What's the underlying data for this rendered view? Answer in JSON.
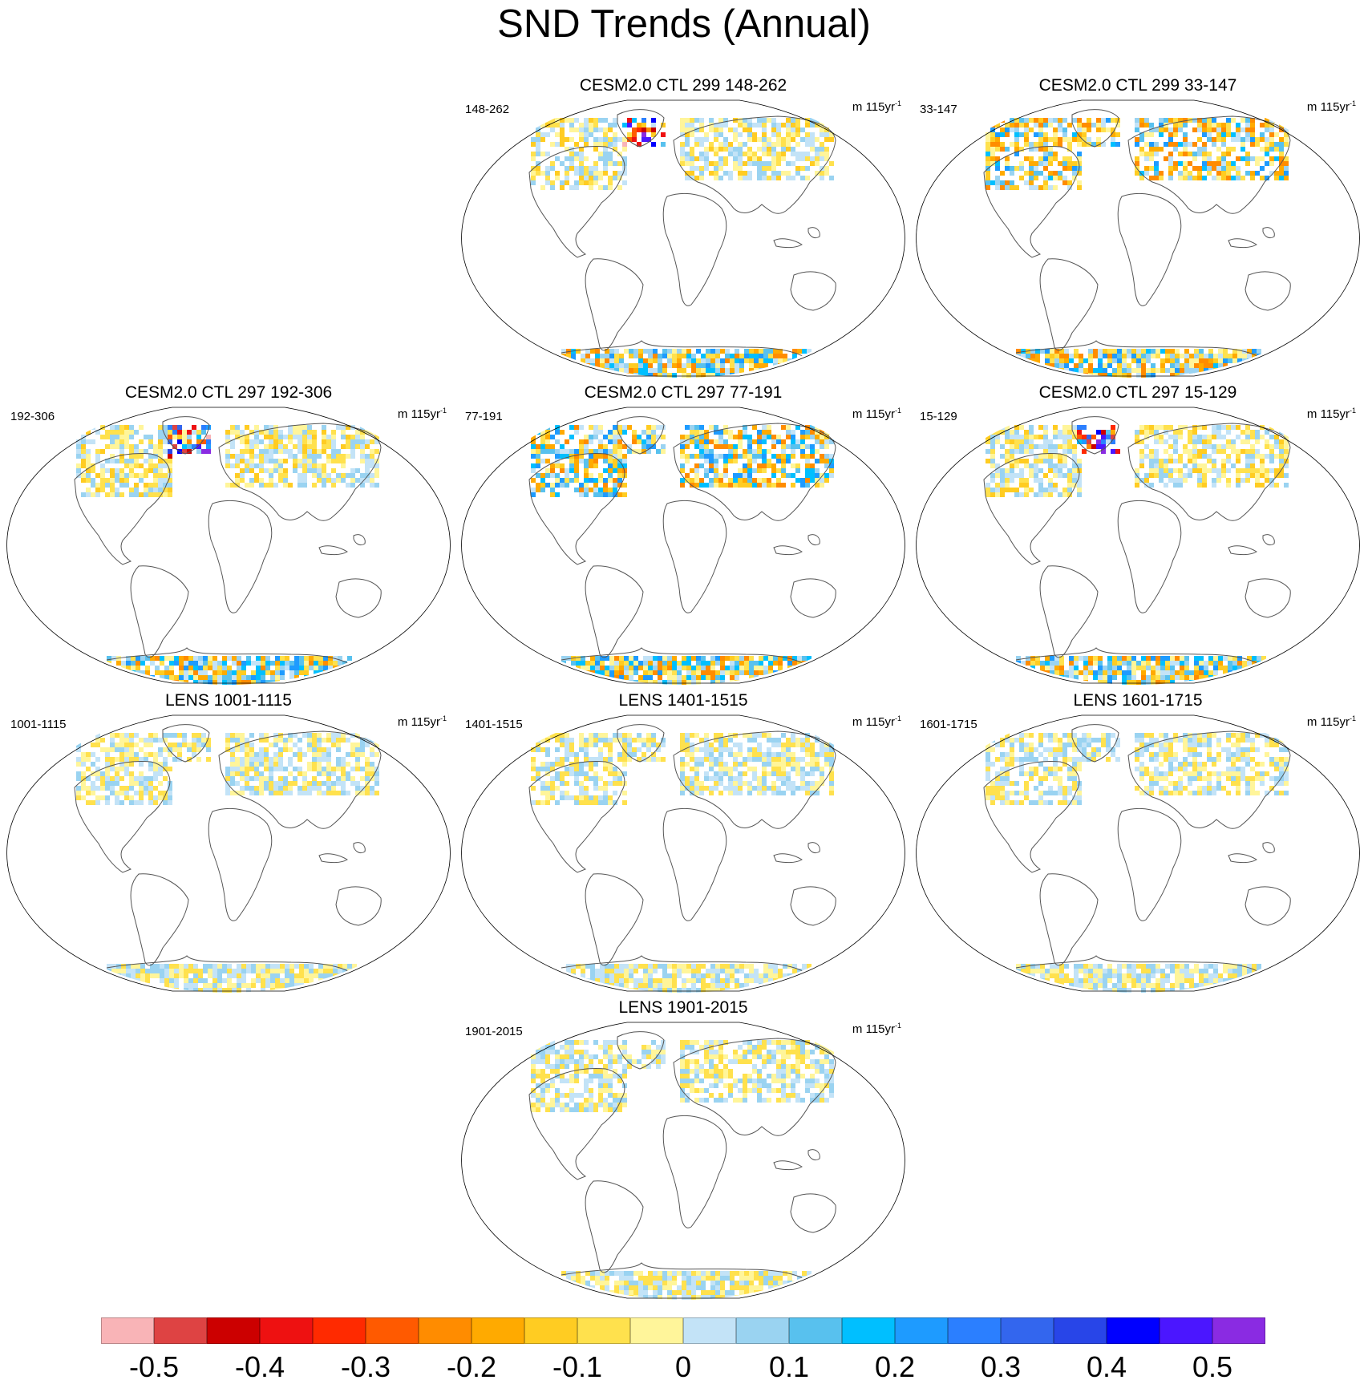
{
  "title": "SND Trends (Annual)",
  "units": "m 115yr",
  "units_exponent": "-1",
  "panels": [
    {
      "title": "CESM2.0 CTL 299 148-262",
      "left_label": "148-262",
      "pattern": "strong",
      "seed": 3
    },
    {
      "title": "CESM2.0 CTL 299 33-147",
      "left_label": "33-147",
      "pattern": "warm",
      "seed": 7
    },
    {
      "title": "CESM2.0 CTL 297 192-306",
      "left_label": "192-306",
      "pattern": "strong",
      "seed": 11
    },
    {
      "title": "CESM2.0 CTL 297 77-191",
      "left_label": "77-191",
      "pattern": "mixed",
      "seed": 13
    },
    {
      "title": "CESM2.0 CTL 297 15-129",
      "left_label": "15-129",
      "pattern": "strong",
      "seed": 17
    },
    {
      "title": "LENS 1001-1115",
      "left_label": "1001-1115",
      "pattern": "weak",
      "seed": 19
    },
    {
      "title": "LENS 1401-1515",
      "left_label": "1401-1515",
      "pattern": "weak",
      "seed": 23
    },
    {
      "title": "LENS 1601-1715",
      "left_label": "1601-1715",
      "pattern": "weak",
      "seed": 29
    },
    {
      "title": "LENS 1901-2015",
      "left_label": "1901-2015",
      "pattern": "weak",
      "seed": 31
    }
  ],
  "colorbar": {
    "colors": [
      "#f9b4b7",
      "#de4343",
      "#cc0000",
      "#ee1111",
      "#ff2a00",
      "#ff5a00",
      "#ff8c00",
      "#ffaa00",
      "#ffcc22",
      "#ffe14d",
      "#fff59a",
      "#c3e3f7",
      "#9ad3f1",
      "#58c1ee",
      "#00bfff",
      "#1e9bff",
      "#2b7fff",
      "#3366ee",
      "#2845e8",
      "#0000ff",
      "#4b16ff",
      "#8a2be2"
    ],
    "labels": [
      "-0.5",
      "-0.4",
      "-0.3",
      "-0.2",
      "-0.1",
      "0",
      "0.1",
      "0.2",
      "0.3",
      "0.4",
      "0.5"
    ]
  }
}
